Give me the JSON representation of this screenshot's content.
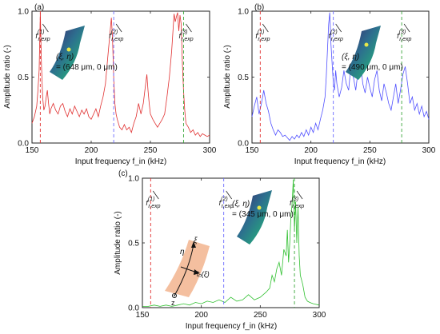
{
  "chart_data": [
    {
      "type": "line",
      "panel_label": "(a)",
      "xlabel": "Input frequency f_in (kHz)",
      "ylabel": "Amplitude ratio (-)",
      "xlim": [
        150,
        300
      ],
      "ylim": [
        0,
        1
      ],
      "x_ticks": [
        "150",
        "200",
        "250",
        "300"
      ],
      "y_ticks": [
        "0.0",
        "0.5",
        "1.0"
      ],
      "color": "#e03030",
      "reference_lines": [
        {
          "label": "f(1) r,exp",
          "x": 157,
          "color": "#e03030"
        },
        {
          "label": "f(2) r,exp",
          "x": 219,
          "color": "#6a6aff"
        },
        {
          "label": "f(3) r,exp",
          "x": 278,
          "color": "#3aa63a"
        }
      ],
      "annotation": [
        "(ξ, η)",
        "= (648 μm, 0 μm)"
      ],
      "series": [
        {
          "x": [
            150,
            152,
            154,
            155,
            156,
            157,
            158,
            159,
            160,
            161,
            162,
            163,
            164,
            165,
            166,
            168,
            170,
            172,
            174,
            176,
            178,
            180,
            182,
            184,
            186,
            188,
            190,
            192,
            194,
            196,
            198,
            200,
            202,
            204,
            206,
            208,
            210,
            212,
            214,
            216,
            217,
            218,
            219,
            220,
            221,
            222,
            224,
            226,
            228,
            230,
            232,
            234,
            236,
            238,
            240,
            242,
            244,
            246,
            247,
            248,
            249,
            250,
            252,
            254,
            256,
            258,
            260,
            262,
            264,
            266,
            268,
            270,
            271,
            272,
            273,
            274,
            275,
            276,
            277,
            278,
            279,
            280,
            282,
            284,
            286,
            288,
            290,
            292,
            294,
            296,
            298,
            300
          ],
          "y": [
            0.15,
            0.2,
            0.28,
            0.4,
            0.55,
            0.99,
            0.6,
            0.35,
            0.25,
            0.28,
            0.35,
            0.4,
            0.3,
            0.22,
            0.26,
            0.3,
            0.25,
            0.22,
            0.28,
            0.3,
            0.24,
            0.2,
            0.26,
            0.22,
            0.28,
            0.24,
            0.2,
            0.25,
            0.22,
            0.26,
            0.2,
            0.18,
            0.22,
            0.26,
            0.2,
            0.28,
            0.35,
            0.45,
            0.65,
            0.85,
            0.95,
            0.8,
            0.5,
            0.3,
            0.22,
            0.18,
            0.12,
            0.1,
            0.14,
            0.1,
            0.12,
            0.08,
            0.15,
            0.2,
            0.3,
            0.22,
            0.3,
            0.45,
            0.52,
            0.4,
            0.3,
            0.22,
            0.18,
            0.15,
            0.12,
            0.15,
            0.18,
            0.22,
            0.35,
            0.5,
            0.7,
            0.98,
            0.92,
            0.96,
            0.99,
            0.85,
            0.97,
            0.9,
            0.6,
            0.4,
            0.25,
            0.15,
            0.12,
            0.08,
            0.1,
            0.06,
            0.08,
            0.05,
            0.07,
            0.06,
            0.05,
            0.06
          ]
        }
      ]
    },
    {
      "type": "line",
      "panel_label": "(b)",
      "xlabel": "Input frequency f_in (kHz)",
      "ylabel": "Amplitude ratio (-)",
      "xlim": [
        150,
        300
      ],
      "ylim": [
        0,
        1
      ],
      "x_ticks": [
        "150",
        "200",
        "250",
        "300"
      ],
      "y_ticks": [
        "0.0",
        "0.5",
        "1.0"
      ],
      "color": "#5050ff",
      "reference_lines": [
        {
          "label": "f(1) r,exp",
          "x": 157,
          "color": "#e03030"
        },
        {
          "label": "f(2) r,exp",
          "x": 219,
          "color": "#6a6aff"
        },
        {
          "label": "f(3) r,exp",
          "x": 277,
          "color": "#3aa63a"
        }
      ],
      "annotation": [
        "(ξ, η)",
        "= (490 μm, 0 μm)"
      ],
      "series": [
        {
          "x": [
            150,
            152,
            154,
            156,
            158,
            160,
            162,
            164,
            166,
            168,
            170,
            172,
            174,
            176,
            178,
            180,
            182,
            184,
            186,
            188,
            190,
            192,
            194,
            196,
            198,
            200,
            202,
            204,
            206,
            208,
            210,
            212,
            213,
            214,
            215,
            216,
            217,
            218,
            219,
            220,
            221,
            222,
            224,
            226,
            228,
            230,
            232,
            234,
            236,
            238,
            240,
            242,
            244,
            246,
            248,
            250,
            252,
            254,
            256,
            258,
            260,
            262,
            264,
            266,
            268,
            270,
            272,
            274,
            276,
            278,
            280,
            282,
            284,
            286,
            288,
            290,
            292,
            294,
            296,
            298,
            300
          ],
          "y": [
            0.2,
            0.28,
            0.35,
            0.22,
            0.3,
            0.4,
            0.3,
            0.24,
            0.15,
            0.1,
            0.06,
            0.1,
            0.08,
            0.05,
            0.06,
            0.04,
            0.02,
            0.05,
            0.03,
            0.06,
            0.04,
            0.08,
            0.05,
            0.1,
            0.06,
            0.12,
            0.08,
            0.15,
            0.1,
            0.18,
            0.25,
            0.35,
            0.5,
            0.7,
            0.9,
            0.99,
            0.75,
            0.6,
            0.45,
            0.4,
            0.55,
            0.45,
            0.35,
            0.42,
            0.55,
            0.45,
            0.4,
            0.6,
            0.5,
            0.4,
            0.55,
            0.62,
            0.45,
            0.38,
            0.5,
            0.42,
            0.35,
            0.48,
            0.55,
            0.4,
            0.32,
            0.45,
            0.38,
            0.3,
            0.25,
            0.35,
            0.45,
            0.3,
            0.4,
            0.52,
            0.58,
            0.45,
            0.3,
            0.35,
            0.25,
            0.3,
            0.22,
            0.28,
            0.2,
            0.24,
            0.18
          ]
        }
      ]
    },
    {
      "type": "line",
      "panel_label": "(c)",
      "xlabel": "Input frequency f_in (kHz)",
      "ylabel": "Amplitude ratio (-)",
      "xlim": [
        150,
        300
      ],
      "ylim": [
        0,
        1
      ],
      "x_ticks": [
        "150",
        "200",
        "250",
        "300"
      ],
      "y_ticks": [
        "0.0",
        "0.5",
        "1.0"
      ],
      "color": "#30c030",
      "reference_lines": [
        {
          "label": "f(1) r,exp",
          "x": 157,
          "color": "#e03030"
        },
        {
          "label": "f(2) r,exp",
          "x": 219,
          "color": "#6a6aff"
        },
        {
          "label": "f(3) r,exp",
          "x": 279,
          "color": "#3aa63a"
        }
      ],
      "annotation": [
        "(ξ, η)",
        "= (345 μm, 0 μm)"
      ],
      "inset_labels": [
        "ξ",
        "η",
        "l₀(ξ)",
        "z"
      ],
      "series": [
        {
          "x": [
            150,
            155,
            160,
            165,
            170,
            175,
            180,
            185,
            190,
            195,
            200,
            205,
            210,
            215,
            220,
            225,
            230,
            235,
            240,
            245,
            250,
            255,
            258,
            260,
            262,
            264,
            266,
            268,
            270,
            272,
            273,
            274,
            275,
            276,
            277,
            278,
            279,
            280,
            281,
            282,
            283,
            284,
            286,
            288,
            290,
            292,
            295,
            300
          ],
          "y": [
            0.01,
            0.01,
            0.02,
            0.01,
            0.02,
            0.01,
            0.02,
            0.03,
            0.02,
            0.04,
            0.03,
            0.05,
            0.04,
            0.06,
            0.04,
            0.08,
            0.05,
            0.06,
            0.1,
            0.06,
            0.08,
            0.12,
            0.15,
            0.25,
            0.2,
            0.3,
            0.35,
            0.25,
            0.45,
            0.4,
            0.6,
            0.35,
            0.5,
            0.7,
            0.8,
            0.99,
            0.6,
            0.82,
            0.5,
            0.78,
            0.4,
            0.25,
            0.18,
            0.08,
            0.05,
            0.04,
            0.03,
            0.02
          ]
        }
      ]
    }
  ]
}
